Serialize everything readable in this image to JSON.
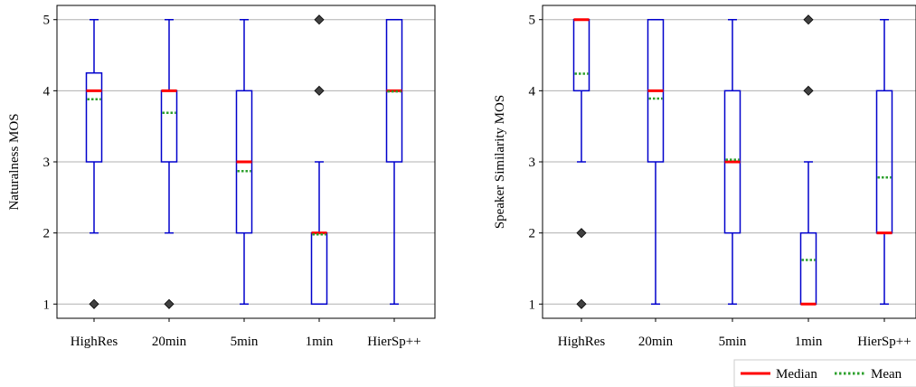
{
  "chart_data": [
    {
      "type": "box",
      "title": "",
      "xlabel": "",
      "ylabel": "Naturalness MOS",
      "ylim": [
        0.8,
        5.2
      ],
      "yticks": [
        1,
        2,
        3,
        4,
        5
      ],
      "grid": "horizontal",
      "categories": [
        "HighRes",
        "20min",
        "5min",
        "1min",
        "HierSp++"
      ],
      "boxes": [
        {
          "whisker_low": 2,
          "q1": 3,
          "median": 4,
          "q3": 4.25,
          "whisker_high": 5,
          "mean": 3.88,
          "outliers": [
            1
          ]
        },
        {
          "whisker_low": 2,
          "q1": 3,
          "median": 4,
          "q3": 4,
          "whisker_high": 5,
          "mean": 3.69,
          "outliers": [
            1
          ]
        },
        {
          "whisker_low": 1,
          "q1": 2,
          "median": 3,
          "q3": 4,
          "whisker_high": 5,
          "mean": 2.87,
          "outliers": []
        },
        {
          "whisker_low": 1,
          "q1": 1,
          "median": 2,
          "q3": 2,
          "whisker_high": 3,
          "mean": 1.98,
          "outliers": [
            4,
            5
          ]
        },
        {
          "whisker_low": 1,
          "q1": 3,
          "median": 4,
          "q3": 5,
          "whisker_high": 5,
          "mean": 3.99,
          "outliers": []
        }
      ]
    },
    {
      "type": "box",
      "title": "",
      "xlabel": "",
      "ylabel": "Speaker Similarity MOS",
      "ylim": [
        0.8,
        5.2
      ],
      "yticks": [
        1,
        2,
        3,
        4,
        5
      ],
      "grid": "horizontal",
      "categories": [
        "HighRes",
        "20min",
        "5min",
        "1min",
        "HierSp++"
      ],
      "boxes": [
        {
          "whisker_low": 3,
          "q1": 4,
          "median": 5,
          "q3": 5,
          "whisker_high": 5,
          "mean": 4.24,
          "outliers": [
            1,
            2
          ]
        },
        {
          "whisker_low": 1,
          "q1": 3,
          "median": 4,
          "q3": 5,
          "whisker_high": 5,
          "mean": 3.89,
          "outliers": []
        },
        {
          "whisker_low": 1,
          "q1": 2,
          "median": 3,
          "q3": 4,
          "whisker_high": 5,
          "mean": 3.03,
          "outliers": []
        },
        {
          "whisker_low": 1,
          "q1": 1,
          "median": 1,
          "q3": 2,
          "whisker_high": 3,
          "mean": 1.62,
          "outliers": [
            4,
            5
          ]
        },
        {
          "whisker_low": 1,
          "q1": 2,
          "median": 2,
          "q3": 4,
          "whisker_high": 5,
          "mean": 2.78,
          "outliers": []
        }
      ]
    }
  ],
  "legend": {
    "placement": "bottom-right",
    "entries": [
      {
        "label": "Median",
        "style": "solid",
        "color": "#ff0000"
      },
      {
        "label": "Mean",
        "style": "dotted",
        "color": "#2ca02c"
      }
    ]
  },
  "colors": {
    "box": "#0000cc",
    "median": "#ff0000",
    "mean": "#2ca02c",
    "grid": "#b0b0b0",
    "outlier": "#404040"
  }
}
